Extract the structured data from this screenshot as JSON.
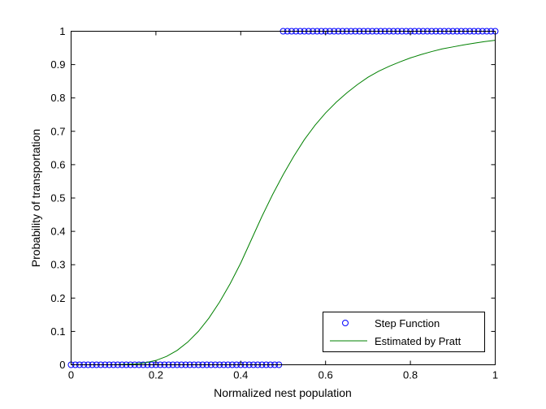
{
  "chart_data": {
    "type": "line",
    "title": "",
    "xlabel": "Normalized nest population",
    "ylabel": "Probability of transportation",
    "xlim": [
      0,
      1
    ],
    "ylim": [
      0,
      1
    ],
    "xticks": [
      0,
      0.2,
      0.4,
      0.6,
      0.8,
      1
    ],
    "xtick_labels": [
      "0",
      "0.2",
      "0.4",
      "0.6",
      "0.8",
      "1"
    ],
    "yticks": [
      0,
      0.1,
      0.2,
      0.3,
      0.4,
      0.5,
      0.6,
      0.7,
      0.8,
      0.9,
      1
    ],
    "ytick_labels": [
      "0",
      "0.1",
      "0.2",
      "0.3",
      "0.4",
      "0.5",
      "0.6",
      "0.7",
      "0.8",
      "0.9",
      "1"
    ],
    "grid": false,
    "legend_position": "bottom-right",
    "series": [
      {
        "name": "Step Function",
        "style": "markers",
        "marker": "circle",
        "color": "#0000ff",
        "x": [
          0,
          0.01,
          0.02,
          0.03,
          0.04,
          0.05,
          0.06,
          0.07,
          0.08,
          0.09,
          0.1,
          0.11,
          0.12,
          0.13,
          0.14,
          0.15,
          0.16,
          0.17,
          0.18,
          0.19,
          0.2,
          0.21,
          0.22,
          0.23,
          0.24,
          0.25,
          0.26,
          0.27,
          0.28,
          0.29,
          0.3,
          0.31,
          0.32,
          0.33,
          0.34,
          0.35,
          0.36,
          0.37,
          0.38,
          0.39,
          0.4,
          0.41,
          0.42,
          0.43,
          0.44,
          0.45,
          0.46,
          0.47,
          0.48,
          0.49,
          0.5,
          0.51,
          0.52,
          0.53,
          0.54,
          0.55,
          0.56,
          0.57,
          0.58,
          0.59,
          0.6,
          0.61,
          0.62,
          0.63,
          0.64,
          0.65,
          0.66,
          0.67,
          0.68,
          0.69,
          0.7,
          0.71,
          0.72,
          0.73,
          0.74,
          0.75,
          0.76,
          0.77,
          0.78,
          0.79,
          0.8,
          0.81,
          0.82,
          0.83,
          0.84,
          0.85,
          0.86,
          0.87,
          0.88,
          0.89,
          0.9,
          0.91,
          0.92,
          0.93,
          0.94,
          0.95,
          0.96,
          0.97,
          0.98,
          0.99,
          1
        ],
        "y": [
          0,
          0,
          0,
          0,
          0,
          0,
          0,
          0,
          0,
          0,
          0,
          0,
          0,
          0,
          0,
          0,
          0,
          0,
          0,
          0,
          0,
          0,
          0,
          0,
          0,
          0,
          0,
          0,
          0,
          0,
          0,
          0,
          0,
          0,
          0,
          0,
          0,
          0,
          0,
          0,
          0,
          0,
          0,
          0,
          0,
          0,
          0,
          0,
          0,
          0,
          1,
          1,
          1,
          1,
          1,
          1,
          1,
          1,
          1,
          1,
          1,
          1,
          1,
          1,
          1,
          1,
          1,
          1,
          1,
          1,
          1,
          1,
          1,
          1,
          1,
          1,
          1,
          1,
          1,
          1,
          1,
          1,
          1,
          1,
          1,
          1,
          1,
          1,
          1,
          1,
          1,
          1,
          1,
          1,
          1,
          1,
          1,
          1,
          1,
          1,
          1
        ]
      },
      {
        "name": "Estimated by Pratt",
        "style": "line",
        "color": "#008000",
        "x": [
          0,
          0.05,
          0.1,
          0.15,
          0.175,
          0.2,
          0.225,
          0.25,
          0.275,
          0.3,
          0.325,
          0.35,
          0.375,
          0.4,
          0.425,
          0.45,
          0.475,
          0.5,
          0.525,
          0.55,
          0.575,
          0.6,
          0.625,
          0.65,
          0.675,
          0.7,
          0.725,
          0.75,
          0.775,
          0.8,
          0.825,
          0.85,
          0.875,
          0.9,
          0.925,
          0.95,
          0.975,
          1
        ],
        "y": [
          0,
          0,
          0,
          0.002,
          0.006,
          0.013,
          0.025,
          0.043,
          0.068,
          0.1,
          0.14,
          0.188,
          0.243,
          0.305,
          0.375,
          0.445,
          0.51,
          0.57,
          0.625,
          0.675,
          0.718,
          0.755,
          0.787,
          0.815,
          0.84,
          0.862,
          0.88,
          0.895,
          0.908,
          0.92,
          0.93,
          0.939,
          0.947,
          0.953,
          0.959,
          0.964,
          0.969,
          0.973
        ]
      }
    ]
  }
}
